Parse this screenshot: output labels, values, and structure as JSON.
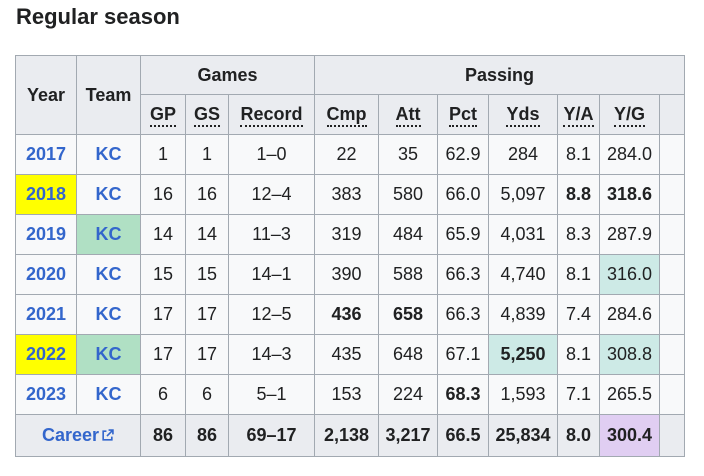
{
  "title": "Regular season",
  "headers": {
    "year": "Year",
    "team": "Team",
    "games": "Games",
    "passing": "Passing",
    "gp": "GP",
    "gs": "GS",
    "record": "Record",
    "cmp": "Cmp",
    "att": "Att",
    "pct": "Pct",
    "yds": "Yds",
    "ya": "Y/A",
    "yg": "Y/G"
  },
  "colors": {
    "header_bg": "#eaecf0",
    "cell_bg": "#f8f9fa",
    "link": "#3366cc",
    "year_highlight_yellow": "#ffff00",
    "team_highlight_green": "#b0e0c4",
    "league_lead_teal": "#cdeae6",
    "record_lavender": "#e0cef2"
  },
  "rows": [
    {
      "year": "2017",
      "team": "KC",
      "gp": "1",
      "gs": "1",
      "record": "1–0",
      "cmp": "22",
      "att": "35",
      "pct": "62.9",
      "yds": "284",
      "ya": "8.1",
      "yg": "284.0"
    },
    {
      "year": "2018",
      "team": "KC",
      "gp": "16",
      "gs": "16",
      "record": "12–4",
      "cmp": "383",
      "att": "580",
      "pct": "66.0",
      "yds": "5,097",
      "ya": "8.8",
      "yg": "318.6"
    },
    {
      "year": "2019",
      "team": "KC",
      "gp": "14",
      "gs": "14",
      "record": "11–3",
      "cmp": "319",
      "att": "484",
      "pct": "65.9",
      "yds": "4,031",
      "ya": "8.3",
      "yg": "287.9"
    },
    {
      "year": "2020",
      "team": "KC",
      "gp": "15",
      "gs": "15",
      "record": "14–1",
      "cmp": "390",
      "att": "588",
      "pct": "66.3",
      "yds": "4,740",
      "ya": "8.1",
      "yg": "316.0"
    },
    {
      "year": "2021",
      "team": "KC",
      "gp": "17",
      "gs": "17",
      "record": "12–5",
      "cmp": "436",
      "att": "658",
      "pct": "66.3",
      "yds": "4,839",
      "ya": "7.4",
      "yg": "284.6"
    },
    {
      "year": "2022",
      "team": "KC",
      "gp": "17",
      "gs": "17",
      "record": "14–3",
      "cmp": "435",
      "att": "648",
      "pct": "67.1",
      "yds": "5,250",
      "ya": "8.1",
      "yg": "308.8"
    },
    {
      "year": "2023",
      "team": "KC",
      "gp": "6",
      "gs": "6",
      "record": "5–1",
      "cmp": "153",
      "att": "224",
      "pct": "68.3",
      "yds": "1,593",
      "ya": "7.1",
      "yg": "265.5"
    }
  ],
  "career": {
    "label": "Career",
    "gp": "86",
    "gs": "86",
    "record": "69–17",
    "cmp": "2,138",
    "att": "3,217",
    "pct": "66.5",
    "yds": "25,834",
    "ya": "8.0",
    "yg": "300.4"
  }
}
